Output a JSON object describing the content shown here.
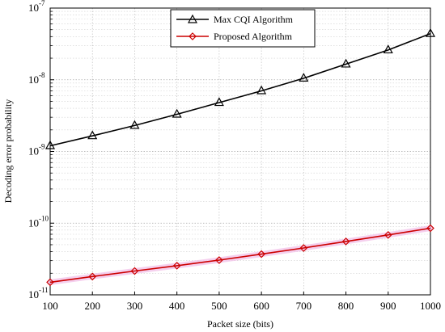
{
  "chart_data": {
    "type": "line",
    "xlabel": "Packet size (bits)",
    "ylabel": "Decoding error probability",
    "x": [
      100,
      200,
      300,
      400,
      500,
      600,
      700,
      800,
      900,
      1000
    ],
    "xlim": [
      100,
      1000
    ],
    "ylim": [
      1e-11,
      1e-07
    ],
    "yscale": "log",
    "grid": true,
    "legend_position": "top-center",
    "x_ticks": [
      "100",
      "200",
      "300",
      "400",
      "500",
      "600",
      "700",
      "800",
      "900",
      "1000"
    ],
    "y_ticks": [
      {
        "value": 1e-11,
        "base": "10",
        "exp": "-11"
      },
      {
        "value": 1e-10,
        "base": "10",
        "exp": "-10"
      },
      {
        "value": 1e-09,
        "base": "10",
        "exp": "-9"
      },
      {
        "value": 1e-08,
        "base": "10",
        "exp": "-8"
      },
      {
        "value": 1e-07,
        "base": "10",
        "exp": "-7"
      }
    ],
    "series": [
      {
        "name": "Max CQI Algorithm",
        "color": "#000000",
        "marker": "triangle",
        "values": [
          1.2e-09,
          1.65e-09,
          2.3e-09,
          3.3e-09,
          4.8e-09,
          7e-09,
          1.05e-08,
          1.65e-08,
          2.6e-08,
          4.4e-08
        ]
      },
      {
        "name": "Proposed Algorithm",
        "color": "#cc0000",
        "marker": "diamond",
        "values": [
          1.5e-11,
          1.8e-11,
          2.15e-11,
          2.55e-11,
          3.05e-11,
          3.7e-11,
          4.5e-11,
          5.55e-11,
          6.85e-11,
          8.5e-11
        ]
      }
    ]
  }
}
